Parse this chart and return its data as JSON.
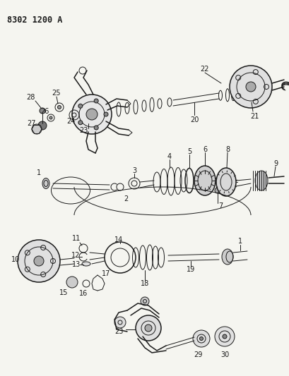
{
  "title_code": "8302 1200 A",
  "background_color": "#f5f5f0",
  "line_color": "#1a1a1a",
  "label_color": "#111111",
  "title_fontsize": 8.5,
  "label_fontsize": 7,
  "fig_width": 4.1,
  "fig_height": 5.33,
  "dpi": 100
}
